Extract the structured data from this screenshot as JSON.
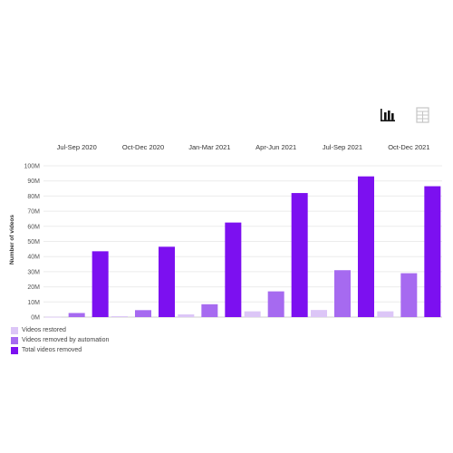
{
  "toolbar": {
    "bar_view_icon": "bar-chart-icon",
    "table_view_icon": "table-icon"
  },
  "chart_data": {
    "type": "bar",
    "categories": [
      "Jul-Sep 2020",
      "Oct-Dec 2020",
      "Jan-Mar 2021",
      "Apr-Jun 2021",
      "Jul-Sep 2021",
      "Oct-Dec 2021"
    ],
    "ylabel": "Number of videos",
    "xlabel": "",
    "ylim": [
      0,
      100000000
    ],
    "yticks": [
      "0M",
      "10M",
      "20M",
      "30M",
      "40M",
      "50M",
      "60M",
      "70M",
      "80M",
      "90M",
      "100M"
    ],
    "grid": true,
    "legend_position": "bottom-left",
    "series": [
      {
        "name": "Videos restored",
        "color": "#dcc6f7",
        "values": [
          200000,
          600000,
          1800000,
          3800000,
          4700000,
          3800000
        ]
      },
      {
        "name": "Videos removed by automation",
        "color": "#a66af0",
        "values": [
          2700000,
          4600000,
          8500000,
          17000000,
          31000000,
          29000000
        ]
      },
      {
        "name": "Total videos removed",
        "color": "#7c10f0",
        "values": [
          43500000,
          46500000,
          62500000,
          82000000,
          93000000,
          86500000
        ]
      }
    ]
  }
}
